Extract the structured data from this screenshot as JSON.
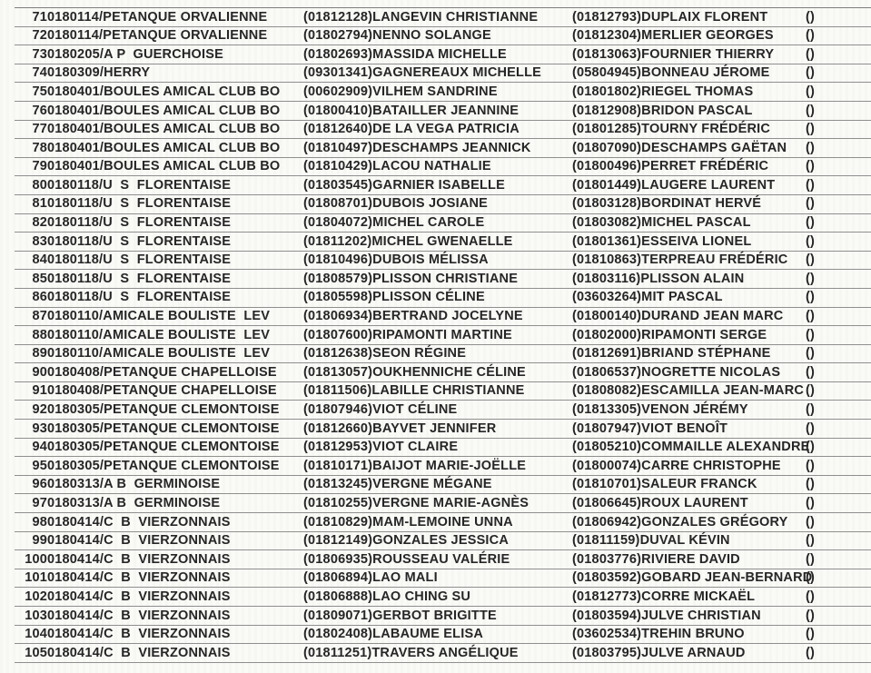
{
  "colors": {
    "text": "#262626",
    "row_line": "#8f8f8f",
    "paper_background": "#fafaf7"
  },
  "table": {
    "columns": [
      "row_number",
      "club",
      "player1",
      "player2",
      "extra"
    ],
    "rows": [
      {
        "num": "71",
        "club": "0180114/PETANQUE ORVALIENNE",
        "player1": "(01812128)LANGEVIN CHRISTIANNE",
        "player2": "(01812793)DUPLAIX FLORENT",
        "extra": "()"
      },
      {
        "num": "72",
        "club": "0180114/PETANQUE ORVALIENNE",
        "player1": "(01802794)NENNO SOLANGE",
        "player2": "(01812304)MERLIER GEORGES",
        "extra": "()"
      },
      {
        "num": "73",
        "club": "0180205/A P  GUERCHOISE",
        "player1": "(01802693)MASSIDA MICHELLE",
        "player2": "(01813063)FOURNIER THIERRY",
        "extra": "()"
      },
      {
        "num": "74",
        "club": "0180309/HERRY",
        "player1": "(09301341)GAGNEREAUX MICHELLE",
        "player2": "(05804945)BONNEAU JÉROME",
        "extra": "()"
      },
      {
        "num": "75",
        "club": "0180401/BOULES AMICAL CLUB BO",
        "player1": "(00602909)VILHEM SANDRINE",
        "player2": "(01801802)RIEGEL THOMAS",
        "extra": "()"
      },
      {
        "num": "76",
        "club": "0180401/BOULES AMICAL CLUB BO",
        "player1": "(01800410)BATAILLER JEANNINE",
        "player2": "(01812908)BRIDON PASCAL",
        "extra": "()"
      },
      {
        "num": "77",
        "club": "0180401/BOULES AMICAL CLUB BO",
        "player1": "(01812640)DE LA VEGA PATRICIA",
        "player2": "(01801285)TOURNY FRÉDÉRIC",
        "extra": "()"
      },
      {
        "num": "78",
        "club": "0180401/BOULES AMICAL CLUB BO",
        "player1": "(01810497)DESCHAMPS JEANNICK",
        "player2": "(01807090)DESCHAMPS GAËTAN",
        "extra": "()"
      },
      {
        "num": "79",
        "club": "0180401/BOULES AMICAL CLUB BO",
        "player1": "(01810429)LACOU NATHALIE",
        "player2": "(01800496)PERRET FRÉDÉRIC",
        "extra": "()"
      },
      {
        "num": "80",
        "club": "0180118/U  S  FLORENTAISE",
        "player1": "(01803545)GARNIER ISABELLE",
        "player2": "(01801449)LAUGERE LAURENT",
        "extra": "()"
      },
      {
        "num": "81",
        "club": "0180118/U  S  FLORENTAISE",
        "player1": "(01808701)DUBOIS JOSIANE",
        "player2": "(01803128)BORDINAT HERVÉ",
        "extra": "()"
      },
      {
        "num": "82",
        "club": "0180118/U  S  FLORENTAISE",
        "player1": "(01804072)MICHEL CAROLE",
        "player2": "(01803082)MICHEL PASCAL",
        "extra": "()"
      },
      {
        "num": "83",
        "club": "0180118/U  S  FLORENTAISE",
        "player1": "(01811202)MICHEL GWENAELLE",
        "player2": "(01801361)ESSEIVA LIONEL",
        "extra": "()"
      },
      {
        "num": "84",
        "club": "0180118/U  S  FLORENTAISE",
        "player1": "(01810496)DUBOIS MÉLISSA",
        "player2": "(01810863)TERPREAU FRÉDÉRIC",
        "extra": "()"
      },
      {
        "num": "85",
        "club": "0180118/U  S  FLORENTAISE",
        "player1": "(01808579)PLISSON CHRISTIANE",
        "player2": "(01803116)PLISSON ALAIN",
        "extra": "()"
      },
      {
        "num": "86",
        "club": "0180118/U  S  FLORENTAISE",
        "player1": "(01805598)PLISSON CÉLINE",
        "player2": "(03603264)MIT PASCAL",
        "extra": "()"
      },
      {
        "num": "87",
        "club": "0180110/AMICALE BOULISTE  LEV",
        "player1": "(01806934)BERTRAND JOCELYNE",
        "player2": "(01800140)DURAND JEAN MARC",
        "extra": "()"
      },
      {
        "num": "88",
        "club": "0180110/AMICALE BOULISTE  LEV",
        "player1": "(01807600)RIPAMONTI MARTINE",
        "player2": "(01802000)RIPAMONTI SERGE",
        "extra": "()"
      },
      {
        "num": "89",
        "club": "0180110/AMICALE BOULISTE  LEV",
        "player1": "(01812638)SEON RÉGINE",
        "player2": "(01812691)BRIAND STÉPHANE",
        "extra": "()"
      },
      {
        "num": "90",
        "club": "0180408/PETANQUE CHAPELLOISE",
        "player1": "(01813057)OUKHENNICHE CÉLINE",
        "player2": "(01806537)NOGRETTE NICOLAS",
        "extra": "()"
      },
      {
        "num": "91",
        "club": "0180408/PETANQUE CHAPELLOISE",
        "player1": "(01811506)LABILLE CHRISTIANNE",
        "player2": "(01808082)ESCAMILLA JEAN-MARC",
        "extra": "()"
      },
      {
        "num": "92",
        "club": "0180305/PETANQUE CLEMONTOISE",
        "player1": "(01807946)VIOT CÉLINE",
        "player2": "(01813305)VENON JÉRÉMY",
        "extra": "()"
      },
      {
        "num": "93",
        "club": "0180305/PETANQUE CLEMONTOISE",
        "player1": "(01812660)BAYVET JENNIFER",
        "player2": "(01807947)VIOT BENOÎT",
        "extra": "()"
      },
      {
        "num": "94",
        "club": "0180305/PETANQUE CLEMONTOISE",
        "player1": "(01812953)VIOT CLAIRE",
        "player2": "(01805210)COMMAILLE ALEXANDRE",
        "extra": "()"
      },
      {
        "num": "95",
        "club": "0180305/PETANQUE CLEMONTOISE",
        "player1": "(01810171)BAIJOT MARIE-JOËLLE",
        "player2": "(01800074)CARRE CHRISTOPHE",
        "extra": "()"
      },
      {
        "num": "96",
        "club": "0180313/A B  GERMINOISE",
        "player1": "(01813245)VERGNE MÉGANE",
        "player2": "(01810701)SALEUR FRANCK",
        "extra": "()"
      },
      {
        "num": "97",
        "club": "0180313/A B  GERMINOISE",
        "player1": "(01810255)VERGNE MARIE-AGNÈS",
        "player2": "(01806645)ROUX LAURENT",
        "extra": "()"
      },
      {
        "num": "98",
        "club": "0180414/C  B  VIERZONNAIS",
        "player1": "(01810829)MAM-LEMOINE UNNA",
        "player2": "(01806942)GONZALES GRÉGORY",
        "extra": "()"
      },
      {
        "num": "99",
        "club": "0180414/C  B  VIERZONNAIS",
        "player1": "(01812149)GONZALES JESSICA",
        "player2": "(01811159)DUVAL KÉVIN",
        "extra": "()"
      },
      {
        "num": "100",
        "club": "0180414/C  B  VIERZONNAIS",
        "player1": "(01806935)ROUSSEAU VALÉRIE",
        "player2": "(01803776)RIVIERE DAVID",
        "extra": "()"
      },
      {
        "num": "101",
        "club": "0180414/C  B  VIERZONNAIS",
        "player1": "(01806894)LAO MALI",
        "player2": "(01803592)GOBARD JEAN-BERNARD",
        "extra": "()"
      },
      {
        "num": "102",
        "club": "0180414/C  B  VIERZONNAIS",
        "player1": "(01806888)LAO CHING SU",
        "player2": "(01812773)CORRE MICKAËL",
        "extra": "()"
      },
      {
        "num": "103",
        "club": "0180414/C  B  VIERZONNAIS",
        "player1": "(01809071)GERBOT BRIGITTE",
        "player2": "(01803594)JULVE CHRISTIAN",
        "extra": "()"
      },
      {
        "num": "104",
        "club": "0180414/C  B  VIERZONNAIS",
        "player1": "(01802408)LABAUME ELISA",
        "player2": "(03602534)TREHIN BRUNO",
        "extra": "()"
      },
      {
        "num": "105",
        "club": "0180414/C  B  VIERZONNAIS",
        "player1": "(01811251)TRAVERS ANGÉLIQUE",
        "player2": "(01803795)JULVE ARNAUD",
        "extra": "()"
      }
    ]
  }
}
